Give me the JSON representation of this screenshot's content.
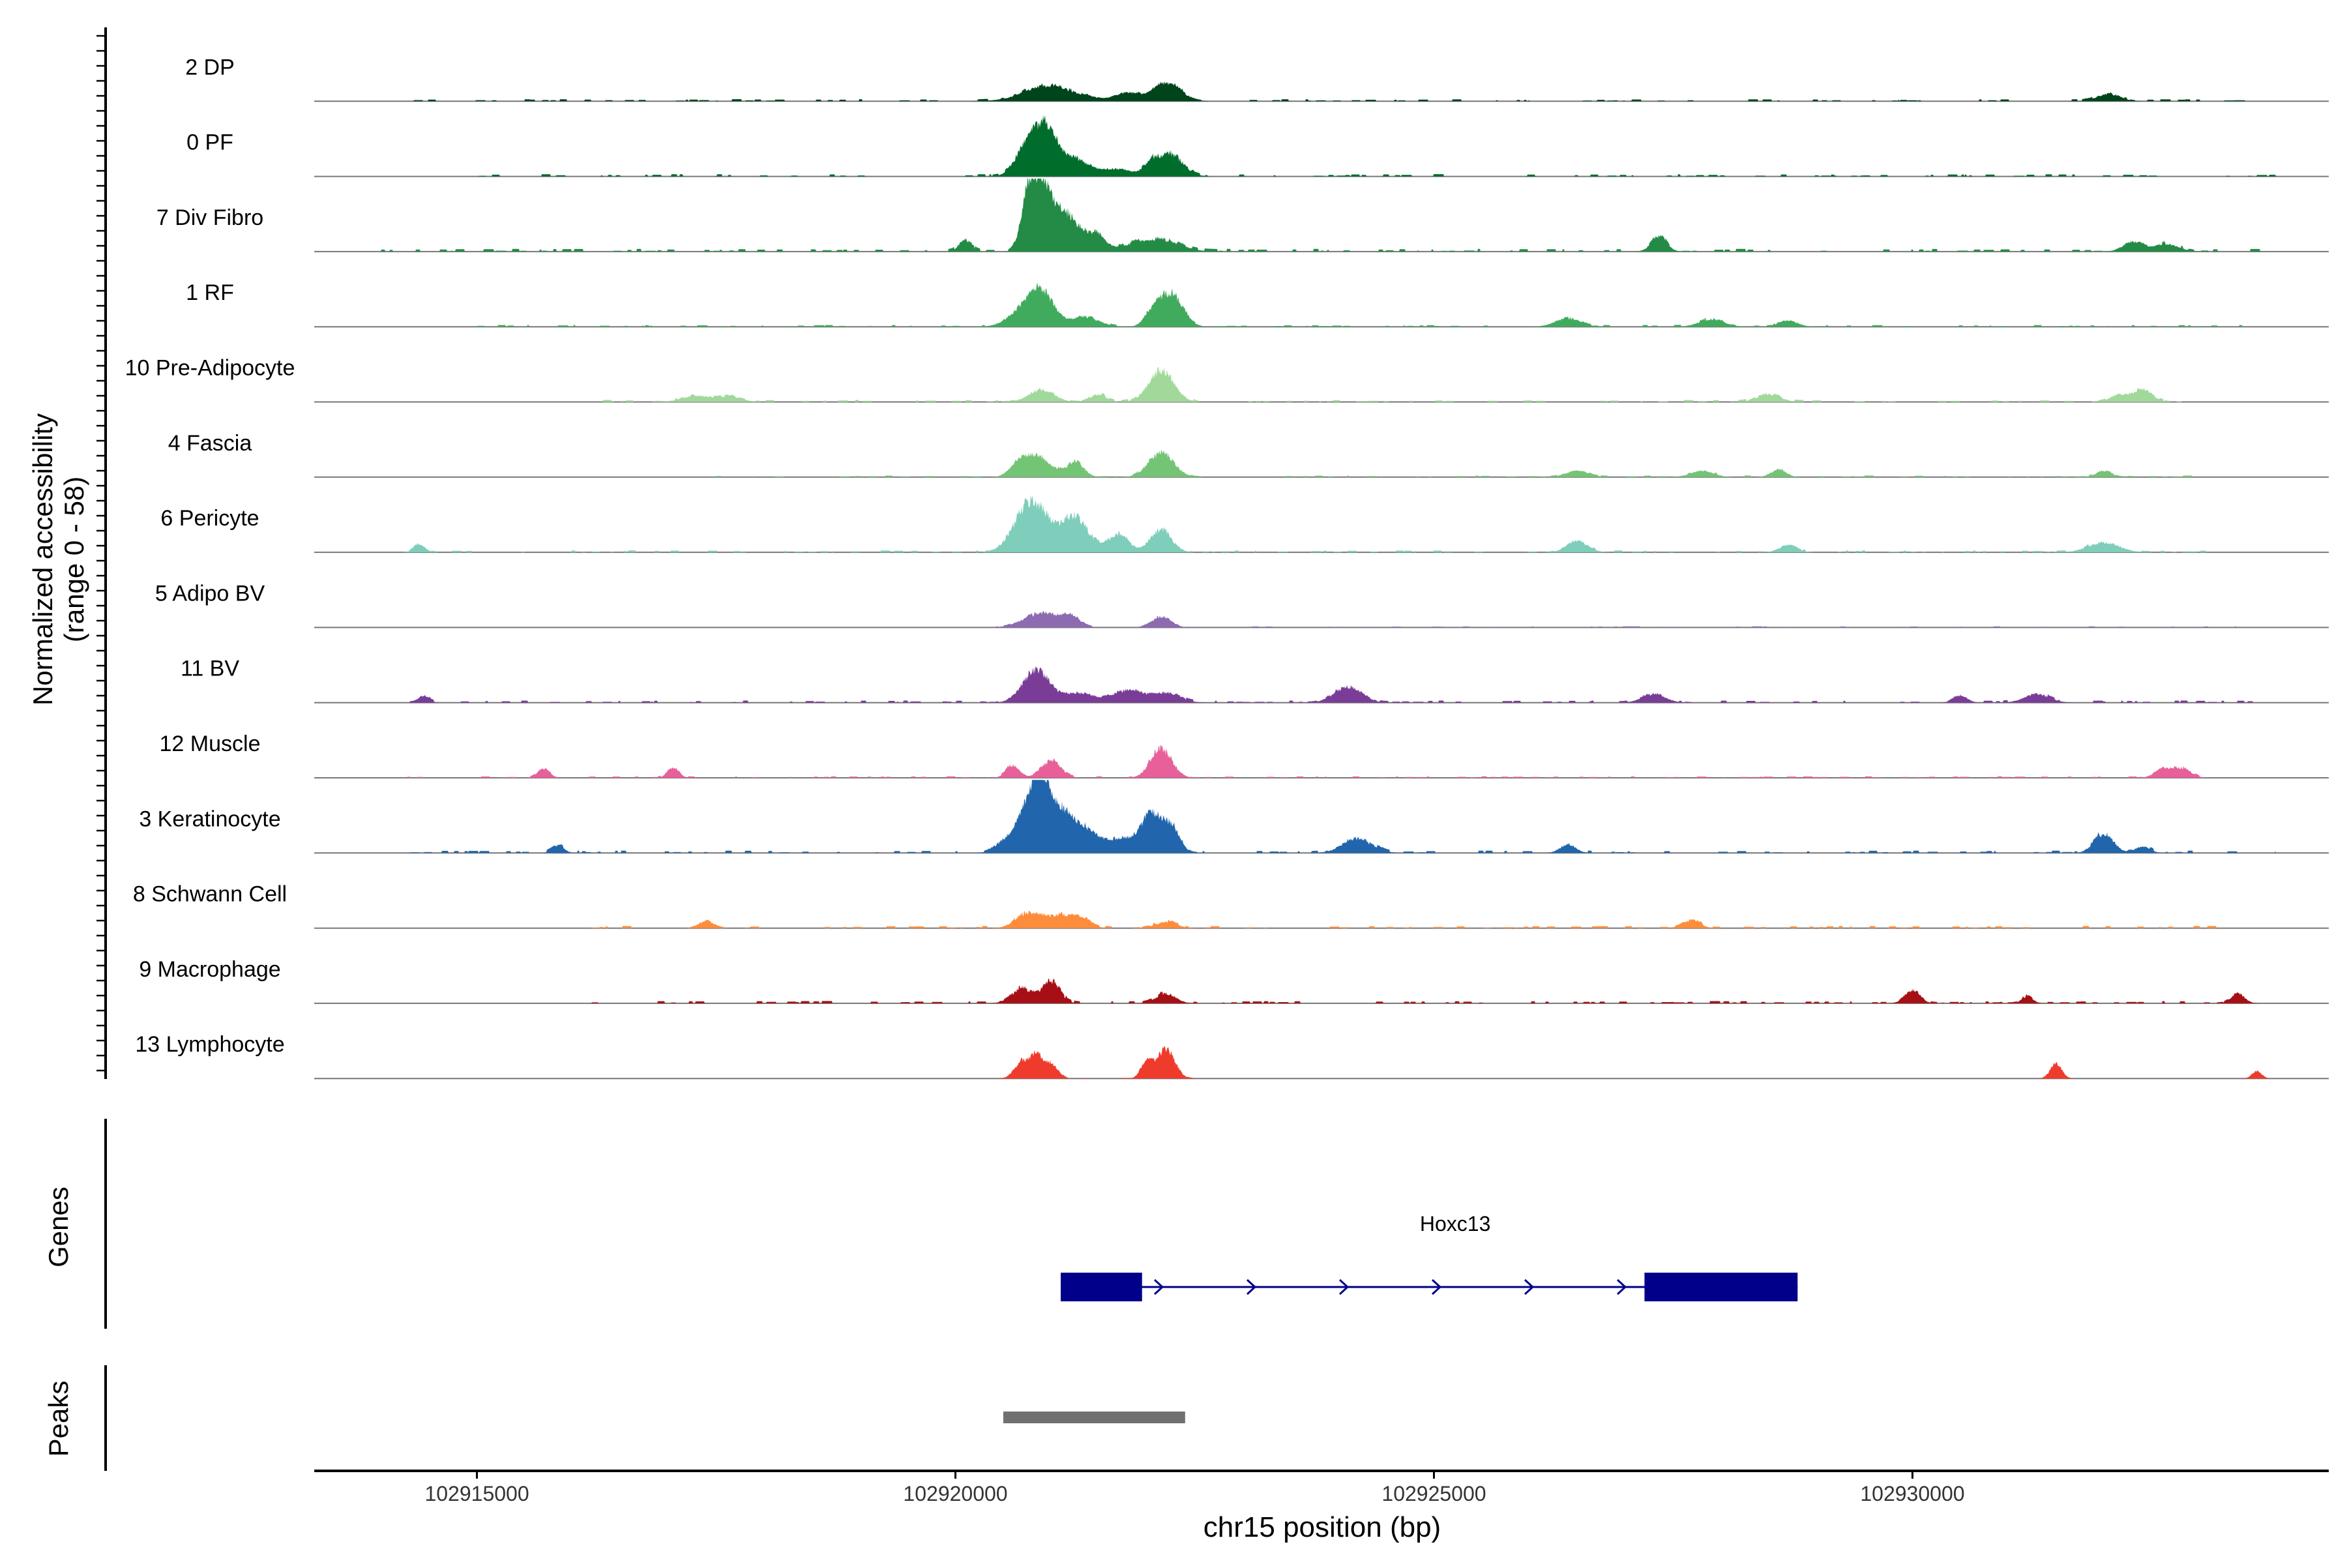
{
  "chart_data": {
    "type": "area",
    "title": "",
    "ylabel_line1": "Normalized accessibility",
    "ylabel_line2": "(range 0 - 58)",
    "genes_label": "Genes",
    "peaks_label": "Peaks",
    "xlabel": "chr15 position (bp)",
    "xlim": [
      102913300,
      102934350
    ],
    "x_ticks": [
      102915000,
      102920000,
      102925000,
      102930000
    ],
    "x_tick_labels": [
      "102915000",
      "102920000",
      "102925000",
      "102930000"
    ],
    "ylim": [
      0,
      58
    ],
    "tracks": [
      {
        "name": "2 DP",
        "color": "#00441b",
        "peaks": [
          [
            102921050,
            300,
            8
          ],
          [
            102920900,
            200,
            5
          ],
          [
            102921800,
            120,
            7
          ],
          [
            102922250,
            130,
            12
          ],
          [
            102922100,
            100,
            6
          ],
          [
            102932050,
            120,
            6
          ]
        ],
        "noise": [
          [
            102914000,
            102933600,
            1.2
          ]
        ]
      },
      {
        "name": "0 PF",
        "color": "#006d2c",
        "peaks": [
          [
            102920950,
            110,
            36
          ],
          [
            102920750,
            120,
            24
          ],
          [
            102921250,
            160,
            14
          ],
          [
            102921700,
            150,
            6
          ],
          [
            102922250,
            130,
            18
          ],
          [
            102922050,
            80,
            9
          ]
        ],
        "noise": [
          [
            102915000,
            102933800,
            1.3
          ]
        ]
      },
      {
        "name": "7 Div Fibro",
        "color": "#238b45",
        "peaks": [
          [
            102920900,
            100,
            56
          ],
          [
            102920750,
            70,
            34
          ],
          [
            102921150,
            120,
            30
          ],
          [
            102921450,
            120,
            14
          ],
          [
            102920100,
            60,
            10
          ],
          [
            102922200,
            180,
            8
          ],
          [
            102921900,
            150,
            6
          ],
          [
            102927350,
            80,
            12
          ],
          [
            102932300,
            100,
            8
          ],
          [
            102932650,
            130,
            6
          ]
        ],
        "noise": [
          [
            102914000,
            102933700,
            1.6
          ]
        ]
      },
      {
        "name": "1 RF",
        "color": "#41ab5d",
        "peaks": [
          [
            102920900,
            130,
            26
          ],
          [
            102920700,
            150,
            12
          ],
          [
            102921350,
            150,
            8
          ],
          [
            102922250,
            120,
            28
          ],
          [
            102922050,
            80,
            10
          ],
          [
            102926400,
            130,
            7
          ],
          [
            102927900,
            130,
            6
          ],
          [
            102928700,
            100,
            5
          ]
        ],
        "noise": [
          [
            102915000,
            102933500,
            1.0
          ]
        ]
      },
      {
        "name": "10 Pre-Adipocyte",
        "color": "#a1d99b",
        "peaks": [
          [
            102922150,
            130,
            26
          ],
          [
            102920900,
            130,
            10
          ],
          [
            102921500,
            80,
            6
          ],
          [
            102917300,
            150,
            5
          ],
          [
            102917650,
            120,
            4
          ],
          [
            102932400,
            100,
            10
          ],
          [
            102932150,
            80,
            6
          ],
          [
            102928500,
            120,
            6
          ]
        ],
        "noise": [
          [
            102916200,
            102932900,
            1.1
          ]
        ]
      },
      {
        "name": "4 Fascia",
        "color": "#74c476",
        "peaks": [
          [
            102920850,
            140,
            18
          ],
          [
            102921250,
            90,
            12
          ],
          [
            102922150,
            130,
            20
          ],
          [
            102920650,
            90,
            8
          ],
          [
            102926500,
            120,
            5
          ],
          [
            102927800,
            120,
            5
          ],
          [
            102928600,
            80,
            6
          ],
          [
            102932000,
            80,
            5
          ]
        ],
        "noise": [
          [
            102917500,
            102933000,
            0.9
          ]
        ]
      },
      {
        "name": "6 Pericyte",
        "color": "#7fcdbb",
        "peaks": [
          [
            102920800,
            170,
            42
          ],
          [
            102921250,
            140,
            28
          ],
          [
            102921700,
            110,
            14
          ],
          [
            102922150,
            110,
            18
          ],
          [
            102914400,
            60,
            6
          ],
          [
            102926500,
            110,
            9
          ],
          [
            102928700,
            90,
            6
          ],
          [
            102932000,
            160,
            8
          ]
        ],
        "noise": [
          [
            102914300,
            102933100,
            1.0
          ]
        ]
      },
      {
        "name": "5 Adipo BV",
        "color": "#8c6bb1",
        "peaks": [
          [
            102920900,
            180,
            12
          ],
          [
            102921200,
            100,
            8
          ],
          [
            102922150,
            100,
            9
          ]
        ],
        "noise": [
          [
            102920300,
            102933500,
            0.6
          ]
        ]
      },
      {
        "name": "11 BV",
        "color": "#7a3d97",
        "peaks": [
          [
            102920850,
            140,
            26
          ],
          [
            102921300,
            140,
            8
          ],
          [
            102921800,
            160,
            10
          ],
          [
            102922200,
            140,
            8
          ],
          [
            102924100,
            140,
            13
          ],
          [
            102914450,
            50,
            6
          ],
          [
            102927300,
            120,
            7
          ],
          [
            102931300,
            130,
            7
          ],
          [
            102930500,
            70,
            6
          ]
        ],
        "noise": [
          [
            102914300,
            102933600,
            1.2
          ]
        ]
      },
      {
        "name": "12 Muscle",
        "color": "#e7609a",
        "peaks": [
          [
            102922150,
            110,
            24
          ],
          [
            102921000,
            100,
            14
          ],
          [
            102920600,
            70,
            10
          ],
          [
            102915700,
            60,
            8
          ],
          [
            102917050,
            60,
            8
          ],
          [
            102932800,
            100,
            8
          ],
          [
            102932600,
            80,
            6
          ]
        ],
        "noise": [
          [
            102914200,
            102933000,
            0.8
          ]
        ]
      },
      {
        "name": "3 Keratinocyte",
        "color": "#2166ac",
        "peaks": [
          [
            102920900,
            80,
            58
          ],
          [
            102920750,
            90,
            34
          ],
          [
            102921100,
            110,
            34
          ],
          [
            102921350,
            130,
            18
          ],
          [
            102920550,
            110,
            12
          ],
          [
            102921750,
            190,
            12
          ],
          [
            102922050,
            100,
            28
          ],
          [
            102922250,
            90,
            20
          ],
          [
            102924200,
            150,
            12
          ],
          [
            102915850,
            60,
            6
          ],
          [
            102926400,
            80,
            7
          ],
          [
            102932000,
            100,
            16
          ],
          [
            102932400,
            80,
            5
          ]
        ],
        "noise": [
          [
            102914300,
            102933800,
            1.4
          ]
        ]
      },
      {
        "name": "8 Schwann Cell",
        "color": "#fd8d3c",
        "peaks": [
          [
            102920750,
            120,
            12
          ],
          [
            102921050,
            130,
            10
          ],
          [
            102921300,
            100,
            9
          ],
          [
            102922200,
            110,
            5
          ],
          [
            102917400,
            70,
            6
          ],
          [
            102927700,
            80,
            7
          ]
        ],
        "noise": [
          [
            102916200,
            102933400,
            1.2
          ]
        ]
      },
      {
        "name": "9 Macrophage",
        "color": "#a50f15",
        "peaks": [
          [
            102920700,
            110,
            12
          ],
          [
            102921000,
            90,
            18
          ],
          [
            102922200,
            100,
            8
          ],
          [
            102930000,
            80,
            10
          ],
          [
            102933400,
            70,
            8
          ],
          [
            102931200,
            60,
            5
          ]
        ],
        "noise": [
          [
            102916200,
            102933600,
            1.3
          ]
        ]
      },
      {
        "name": "13 Lymphocyte",
        "color": "#ef3b2c",
        "peaks": [
          [
            102920700,
            80,
            14
          ],
          [
            102920850,
            60,
            18
          ],
          [
            102921000,
            70,
            12
          ],
          [
            102922200,
            90,
            24
          ],
          [
            102922000,
            60,
            14
          ],
          [
            102931500,
            60,
            12
          ],
          [
            102933600,
            50,
            6
          ]
        ],
        "noise": [
          [
            102920600,
            102922500,
            0.3
          ]
        ]
      }
    ],
    "genes": [
      {
        "name": "Hoxc13",
        "strand": "+",
        "start": 102921100,
        "end": 102928800,
        "exons": [
          [
            102921100,
            102921950
          ],
          [
            102927200,
            102928800
          ]
        ]
      }
    ],
    "peak_regions": [
      [
        102920500,
        102922400
      ]
    ]
  }
}
